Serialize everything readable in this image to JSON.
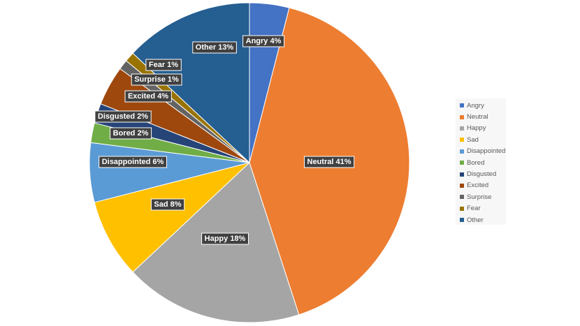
{
  "chart_data": {
    "type": "pie",
    "title": "",
    "legend_position": "right",
    "slices": [
      {
        "name": "Angry",
        "value": 4,
        "label": "Angry 4%",
        "color": "#4472C4"
      },
      {
        "name": "Neutral",
        "value": 41,
        "label": "Neutral 41%",
        "color": "#ED7D31"
      },
      {
        "name": "Happy",
        "value": 18,
        "label": "Happy 18%",
        "color": "#A5A5A5"
      },
      {
        "name": "Sad",
        "value": 8,
        "label": "Sad 8%",
        "color": "#FFC000"
      },
      {
        "name": "Disappointed",
        "value": 6,
        "label": "Disappointed 6%",
        "color": "#5B9BD5"
      },
      {
        "name": "Bored",
        "value": 2,
        "label": "Bored 2%",
        "color": "#70AD47"
      },
      {
        "name": "Disgusted",
        "value": 2,
        "label": "Disgusted 2%",
        "color": "#264478"
      },
      {
        "name": "Excited",
        "value": 4,
        "label": "Excited 4%",
        "color": "#9E480E"
      },
      {
        "name": "Surprise",
        "value": 1,
        "label": "Surprise 1%",
        "color": "#636363"
      },
      {
        "name": "Fear",
        "value": 1,
        "label": "Fear 1%",
        "color": "#997300"
      },
      {
        "name": "Other",
        "value": 13,
        "label": "Other 13%",
        "color": "#255E91"
      }
    ]
  }
}
